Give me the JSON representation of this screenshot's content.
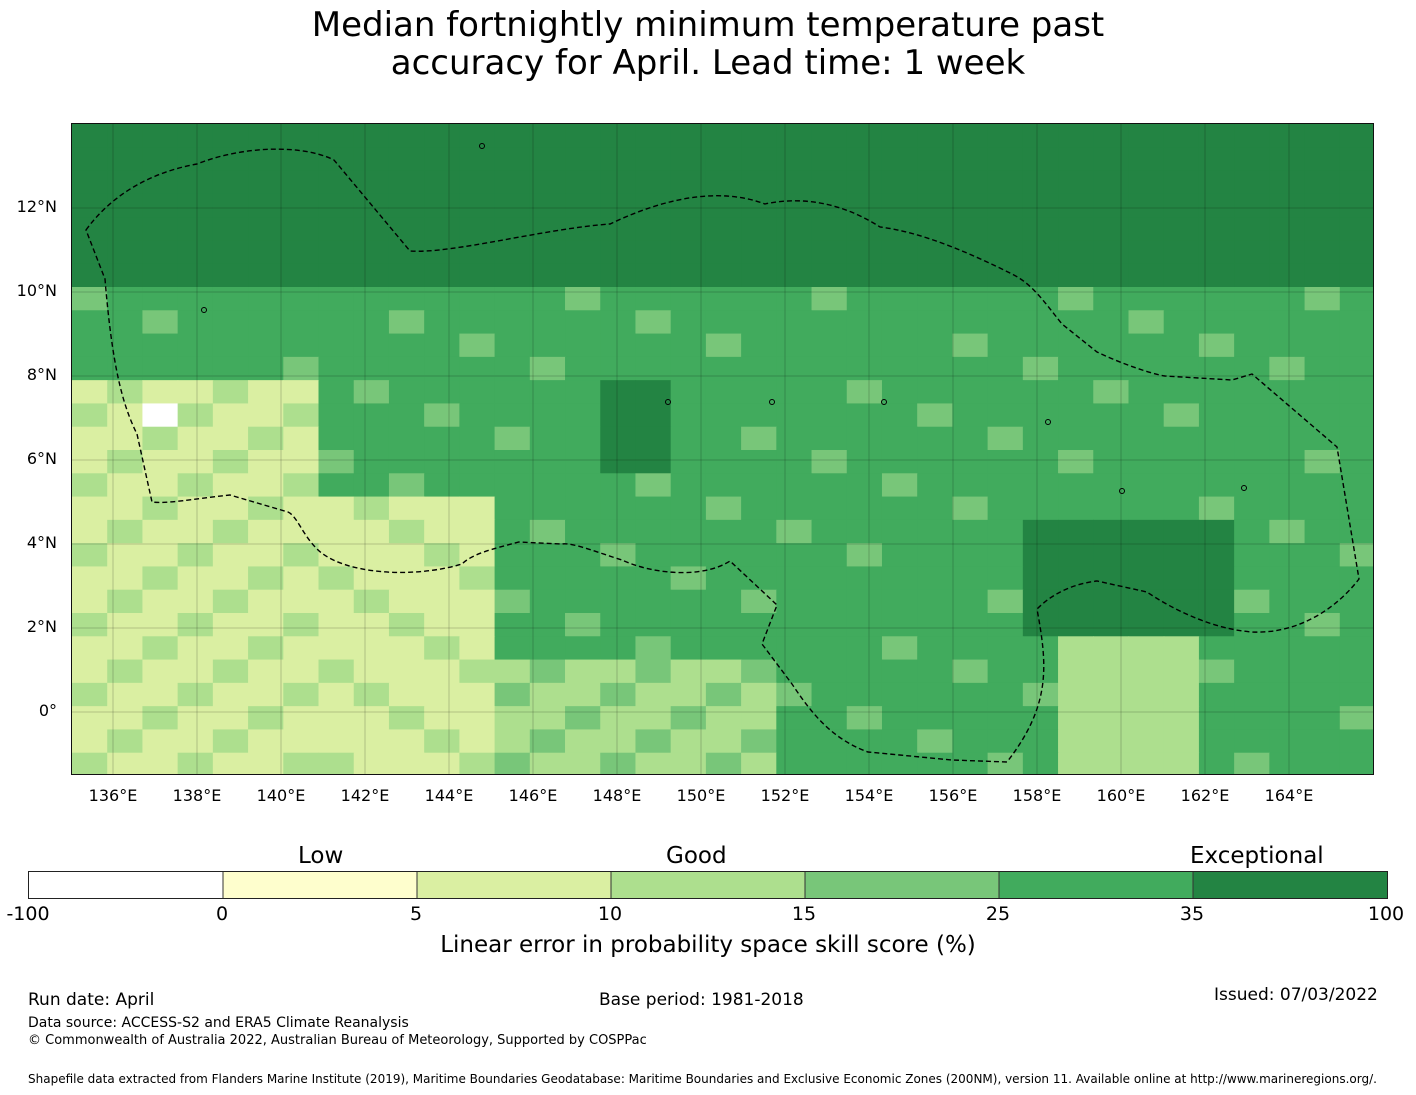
{
  "title": {
    "line1": "Median fortnightly minimum temperature past",
    "line2": "accuracy for April. Lead time: 1 week"
  },
  "map": {
    "lat_labels": [
      "12°N",
      "10°N",
      "8°N",
      "6°N",
      "4°N",
      "2°N",
      "0°"
    ],
    "lon_labels": [
      "136°E",
      "138°E",
      "140°E",
      "142°E",
      "144°E",
      "146°E",
      "148°E",
      "150°E",
      "152°E",
      "154°E",
      "156°E",
      "158°E",
      "160°E",
      "162°E",
      "164°E"
    ]
  },
  "legend": {
    "categories": [
      "Low",
      "Good",
      "Exceptional"
    ],
    "ticks": [
      "-100",
      "0",
      "5",
      "10",
      "15",
      "25",
      "35",
      "100"
    ],
    "colors": [
      "#ffffff",
      "#fefecd",
      "#daefa2",
      "#addf8e",
      "#78c679",
      "#41ab5d",
      "#238443"
    ],
    "label": "Linear error in probability space skill score (%)"
  },
  "info": {
    "run_date": "Run date: April",
    "base_period": "Base period: 1981-2018",
    "issued": "Issued: 07/03/2022",
    "data_source": "Data source: ACCESS-S2 and ERA5 Climate Reanalysis",
    "copyright": "© Commonwealth of Australia 2022, Australian Bureau of Meteorology, Supported by COSPPac",
    "shapefile": "Shapefile data extracted from Flanders Marine Institute (2019), Maritime Boundaries Geodatabase: Maritime Boundaries and Exclusive Economic Zones (200NM), version 11. Available online at http://www.marineregions.org/."
  }
}
